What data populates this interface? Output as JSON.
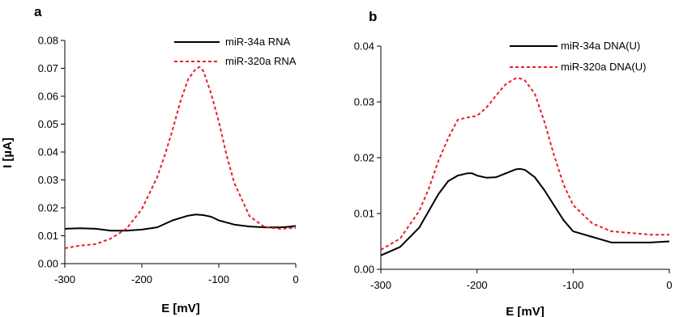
{
  "chart_data": [
    {
      "type": "line",
      "panel_label": "a",
      "xlabel": "E [mV]",
      "ylabel": "I [µA]",
      "xlim": [
        -300,
        0
      ],
      "ylim": [
        0,
        0.08
      ],
      "x_ticks": [
        "-300",
        "-200",
        "-100",
        "0"
      ],
      "y_ticks": [
        "0.00",
        "0.01",
        "0.02",
        "0.03",
        "0.04",
        "0.05",
        "0.06",
        "0.07",
        "0.08"
      ],
      "grid": false,
      "legend_position": "top-right",
      "series": [
        {
          "name": "miR-34a RNA",
          "color": "#000000",
          "style": "solid",
          "x": [
            -300,
            -280,
            -260,
            -240,
            -220,
            -200,
            -180,
            -160,
            -140,
            -130,
            -120,
            -110,
            -100,
            -80,
            -60,
            -40,
            -20,
            -10,
            0
          ],
          "y": [
            0.0125,
            0.0127,
            0.0125,
            0.0118,
            0.0118,
            0.0122,
            0.013,
            0.0155,
            0.0172,
            0.0176,
            0.0174,
            0.0168,
            0.0155,
            0.014,
            0.0133,
            0.013,
            0.013,
            0.0132,
            0.0135
          ]
        },
        {
          "name": "miR-320a RNA",
          "color": "#e8202a",
          "style": "dashed",
          "x": [
            -300,
            -280,
            -260,
            -240,
            -220,
            -200,
            -180,
            -170,
            -160,
            -150,
            -140,
            -130,
            -125,
            -120,
            -110,
            -100,
            -90,
            -80,
            -60,
            -40,
            -20,
            0
          ],
          "y": [
            0.0055,
            0.0065,
            0.007,
            0.009,
            0.0125,
            0.0195,
            0.031,
            0.039,
            0.048,
            0.058,
            0.066,
            0.0698,
            0.0705,
            0.069,
            0.061,
            0.051,
            0.039,
            0.029,
            0.017,
            0.013,
            0.0125,
            0.0128
          ]
        }
      ]
    },
    {
      "type": "line",
      "panel_label": "b",
      "xlabel": "E [mV]",
      "ylabel": "",
      "xlim": [
        -300,
        0
      ],
      "ylim": [
        0,
        0.04
      ],
      "x_ticks": [
        "-300",
        "-200",
        "-100",
        "0"
      ],
      "y_ticks": [
        "0.00",
        "0.01",
        "0.02",
        "0.03",
        "0.04"
      ],
      "grid": false,
      "legend_position": "top-right",
      "series": [
        {
          "name": "miR-34a DNA(U)",
          "color": "#000000",
          "style": "solid",
          "x": [
            -300,
            -280,
            -260,
            -250,
            -240,
            -230,
            -220,
            -210,
            -205,
            -200,
            -190,
            -180,
            -170,
            -160,
            -155,
            -150,
            -140,
            -130,
            -120,
            -110,
            -100,
            -80,
            -60,
            -40,
            -20,
            0
          ],
          "y": [
            0.0025,
            0.004,
            0.0075,
            0.0105,
            0.0135,
            0.0158,
            0.0168,
            0.0172,
            0.0172,
            0.0168,
            0.0164,
            0.0165,
            0.0172,
            0.0179,
            0.018,
            0.0178,
            0.0165,
            0.0142,
            0.0115,
            0.0088,
            0.0068,
            0.0058,
            0.0048,
            0.0048,
            0.0048,
            0.005
          ]
        },
        {
          "name": "miR-320a DNA(U)",
          "color": "#e8202a",
          "style": "dashed",
          "x": [
            -300,
            -280,
            -260,
            -250,
            -240,
            -230,
            -220,
            -210,
            -200,
            -190,
            -180,
            -170,
            -160,
            -155,
            -150,
            -140,
            -130,
            -120,
            -110,
            -100,
            -80,
            -60,
            -40,
            -20,
            0
          ],
          "y": [
            0.0035,
            0.0055,
            0.0105,
            0.0145,
            0.0195,
            0.0235,
            0.0268,
            0.0272,
            0.0275,
            0.029,
            0.0312,
            0.0332,
            0.0342,
            0.0342,
            0.0338,
            0.0315,
            0.0265,
            0.0205,
            0.0152,
            0.0115,
            0.0082,
            0.0068,
            0.0065,
            0.0062,
            0.0062
          ]
        }
      ]
    }
  ]
}
